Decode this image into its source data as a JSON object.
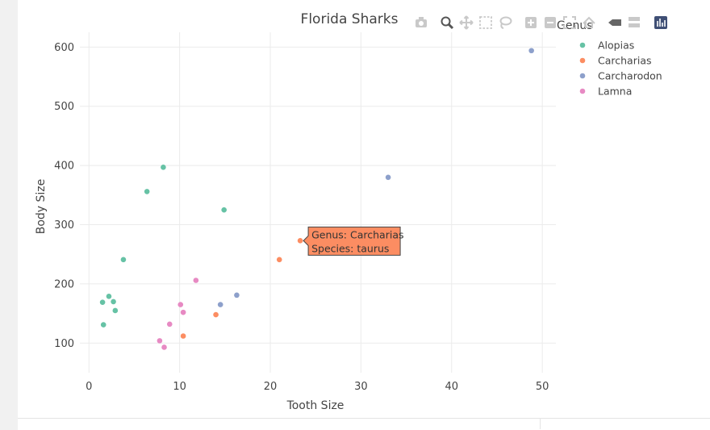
{
  "chart_data": {
    "type": "scatter",
    "title": "Florida Sharks",
    "xlabel": "Tooth Size",
    "ylabel": "Body Size",
    "xlim": [
      -1,
      51.5
    ],
    "ylim": [
      50,
      625
    ],
    "x_ticks": [
      0,
      10,
      20,
      30,
      40,
      50
    ],
    "y_ticks": [
      100,
      200,
      300,
      400,
      500,
      600
    ],
    "grid": true,
    "legend_title": "Genus",
    "legend_position": "top-right",
    "series": [
      {
        "name": "Alopias",
        "color": "#66c2a5",
        "points": [
          [
            1.5,
            169
          ],
          [
            1.6,
            131
          ],
          [
            2.2,
            179
          ],
          [
            2.7,
            170
          ],
          [
            2.9,
            155
          ],
          [
            3.8,
            241
          ],
          [
            6.4,
            356
          ],
          [
            8.2,
            397
          ],
          [
            14.9,
            325
          ]
        ]
      },
      {
        "name": "Carcharias",
        "color": "#fc8d62",
        "points": [
          [
            10.4,
            112
          ],
          [
            14.0,
            148
          ],
          [
            21.0,
            241
          ],
          [
            23.3,
            273
          ]
        ]
      },
      {
        "name": "Carcharodon",
        "color": "#8da0cb",
        "points": [
          [
            14.5,
            165
          ],
          [
            16.3,
            181
          ],
          [
            33.0,
            380
          ],
          [
            48.8,
            594
          ]
        ]
      },
      {
        "name": "Lamna",
        "color": "#e78ac3",
        "points": [
          [
            7.8,
            104
          ],
          [
            8.3,
            93
          ],
          [
            8.9,
            132
          ],
          [
            10.1,
            165
          ],
          [
            10.4,
            152
          ],
          [
            11.8,
            206
          ]
        ]
      }
    ],
    "hover": {
      "point": [
        23.3,
        273
      ],
      "color": "#fc8d62",
      "lines": [
        "Genus: Carcharias",
        "Species: taurus"
      ]
    }
  },
  "modebar": {
    "buttons": [
      "camera-icon",
      "zoom-icon",
      "pan-icon",
      "box-select-icon",
      "lasso-icon",
      "zoom-in-icon",
      "zoom-out-icon",
      "autoscale-icon",
      "reset-axes-icon",
      "spike-lines-icon",
      "hover-closest-icon",
      "hover-compare-icon",
      "plotly-logo-icon"
    ]
  }
}
